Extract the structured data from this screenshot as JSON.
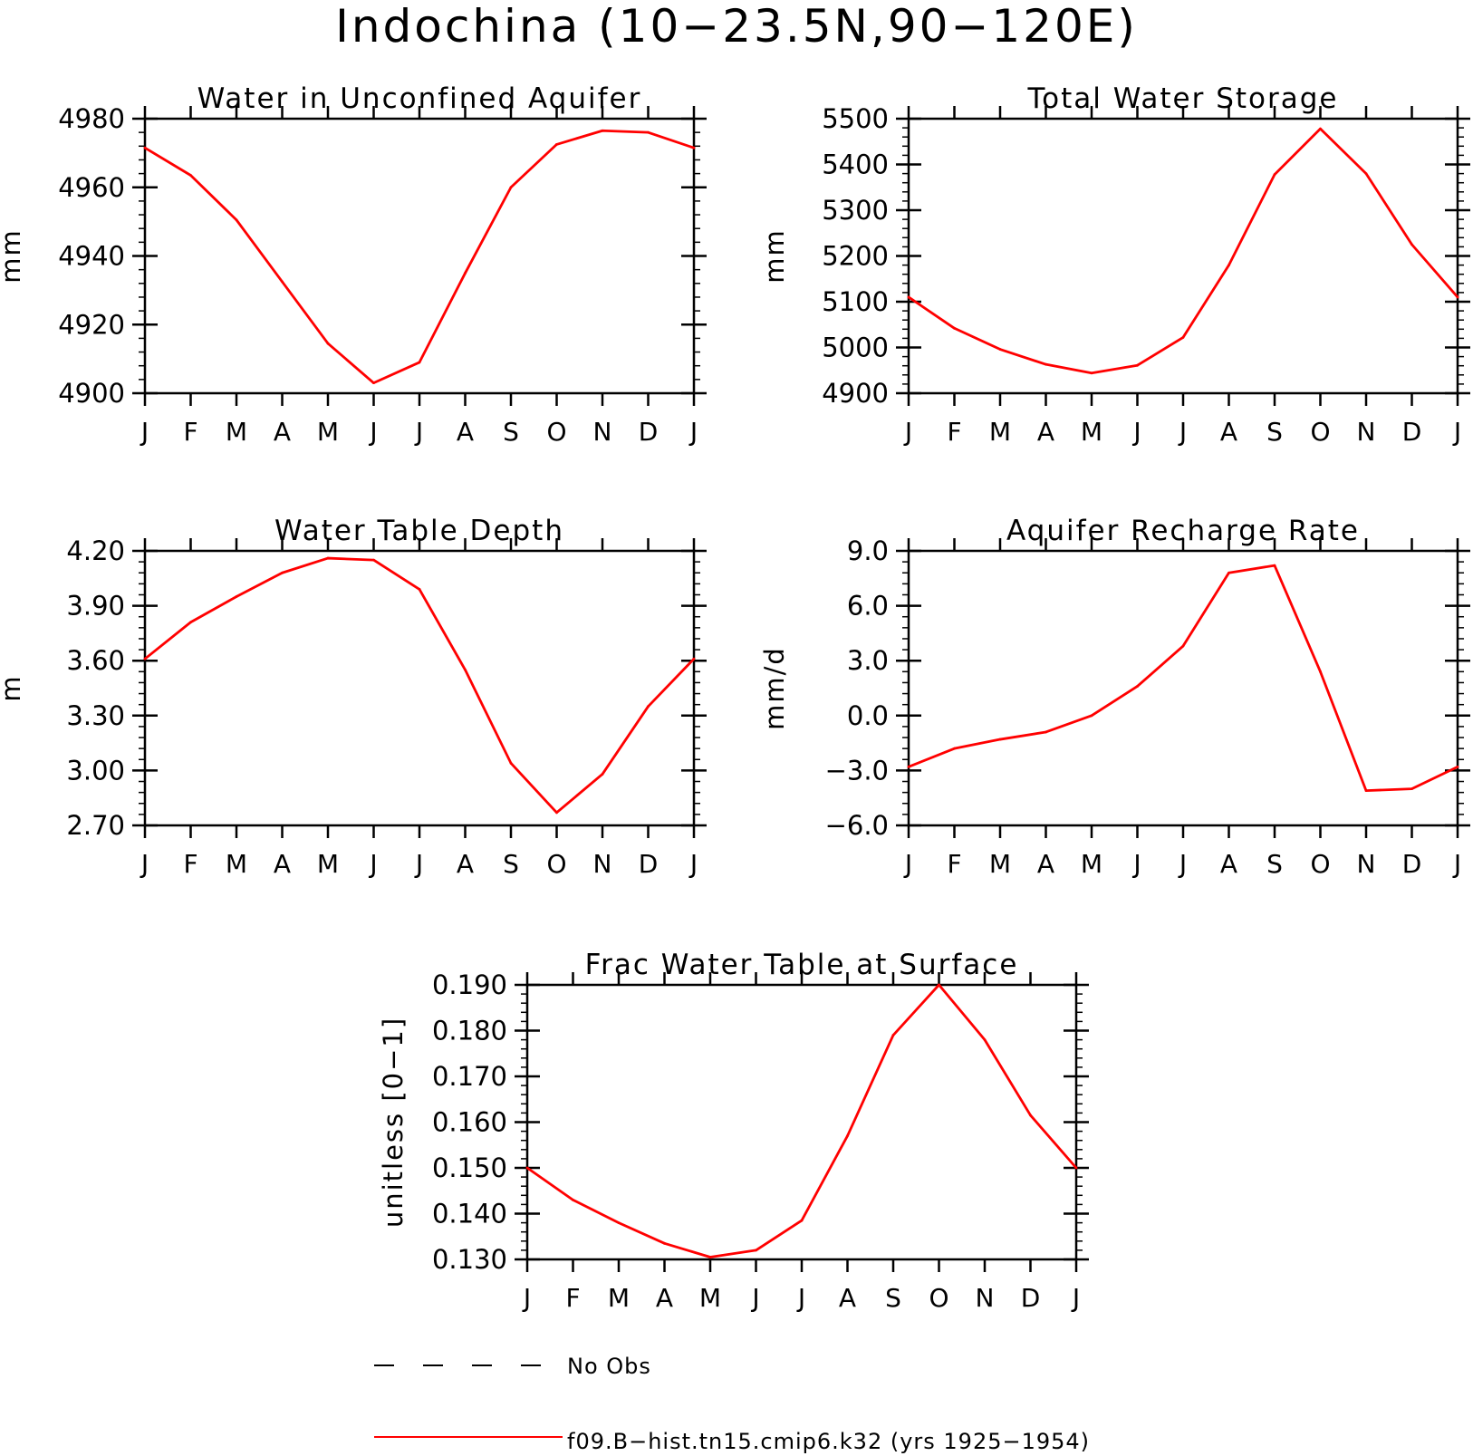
{
  "title": "Indochina (10−23.5N,90−120E)",
  "colors": {
    "series": "#ff0000",
    "axes": "#000000",
    "background": "#ffffff"
  },
  "legend": {
    "items": [
      {
        "label": "No Obs",
        "style": "dashed",
        "color": "#000000"
      },
      {
        "label": "f09.B−hist.tn15.cmip6.k32 (yrs 1925−1954)",
        "style": "solid",
        "color": "#ff0000"
      }
    ]
  },
  "chart_data": [
    {
      "type": "line",
      "title": "Water in Unconfined Aquifer",
      "ylabel": "mm",
      "categories": [
        "J",
        "F",
        "M",
        "A",
        "M",
        "J",
        "J",
        "A",
        "S",
        "O",
        "N",
        "D",
        "J"
      ],
      "ylim": [
        4900,
        4980
      ],
      "yticks": [
        "4900",
        "4920",
        "4940",
        "4960",
        "4980"
      ],
      "series": [
        {
          "name": "f09.B−hist.tn15.cmip6.k32 (yrs 1925−1954)",
          "values": [
            4971.5,
            4963.5,
            4950.5,
            4932.5,
            4914.5,
            4903,
            4909,
            4935,
            4960,
            4972.5,
            4976.5,
            4976,
            4971.5
          ]
        }
      ]
    },
    {
      "type": "line",
      "title": "Total Water Storage",
      "ylabel": "mm",
      "categories": [
        "J",
        "F",
        "M",
        "A",
        "M",
        "J",
        "J",
        "A",
        "S",
        "O",
        "N",
        "D",
        "J"
      ],
      "ylim": [
        4900,
        5500
      ],
      "yticks": [
        "4900",
        "5000",
        "5100",
        "5200",
        "5300",
        "5400",
        "5500"
      ],
      "series": [
        {
          "name": "f09.B−hist.tn15.cmip6.k32 (yrs 1925−1954)",
          "values": [
            5110,
            5042,
            4996,
            4963,
            4944,
            4961,
            5022,
            5180,
            5378,
            5478,
            5380,
            5225,
            5110
          ]
        }
      ]
    },
    {
      "type": "line",
      "title": "Water Table Depth",
      "ylabel": "m",
      "categories": [
        "J",
        "F",
        "M",
        "A",
        "M",
        "J",
        "J",
        "A",
        "S",
        "O",
        "N",
        "D",
        "J"
      ],
      "ylim": [
        2.7,
        4.2
      ],
      "yticks": [
        "2.70",
        "3.00",
        "3.30",
        "3.60",
        "3.90",
        "4.20"
      ],
      "series": [
        {
          "name": "f09.B−hist.tn15.cmip6.k32 (yrs 1925−1954)",
          "values": [
            3.61,
            3.81,
            3.95,
            4.08,
            4.16,
            4.15,
            3.99,
            3.55,
            3.04,
            2.77,
            2.98,
            3.35,
            3.61
          ]
        }
      ]
    },
    {
      "type": "line",
      "title": "Aquifer Recharge Rate",
      "ylabel": "mm/d",
      "categories": [
        "J",
        "F",
        "M",
        "A",
        "M",
        "J",
        "J",
        "A",
        "S",
        "O",
        "N",
        "D",
        "J"
      ],
      "ylim": [
        -6,
        9
      ],
      "yticks": [
        "−6.0",
        "−3.0",
        "0.0",
        "3.0",
        "6.0",
        "9.0"
      ],
      "series": [
        {
          "name": "f09.B−hist.tn15.cmip6.k32 (yrs 1925−1954)",
          "values": [
            -2.8,
            -1.8,
            -1.3,
            -0.9,
            0.0,
            1.6,
            3.8,
            7.8,
            8.2,
            2.4,
            -4.1,
            -4.0,
            -2.8
          ]
        }
      ]
    },
    {
      "type": "line",
      "title": "Frac Water Table at Surface",
      "ylabel": "unitless [0−1]",
      "categories": [
        "J",
        "F",
        "M",
        "A",
        "M",
        "J",
        "J",
        "A",
        "S",
        "O",
        "N",
        "D",
        "J"
      ],
      "ylim": [
        0.13,
        0.19
      ],
      "yticks": [
        "0.130",
        "0.140",
        "0.150",
        "0.160",
        "0.170",
        "0.180",
        "0.190"
      ],
      "series": [
        {
          "name": "f09.B−hist.tn15.cmip6.k32 (yrs 1925−1954)",
          "values": [
            0.15,
            0.143,
            0.138,
            0.1335,
            0.1305,
            0.132,
            0.1385,
            0.157,
            0.179,
            0.19,
            0.178,
            0.1615,
            0.15
          ]
        }
      ]
    }
  ]
}
